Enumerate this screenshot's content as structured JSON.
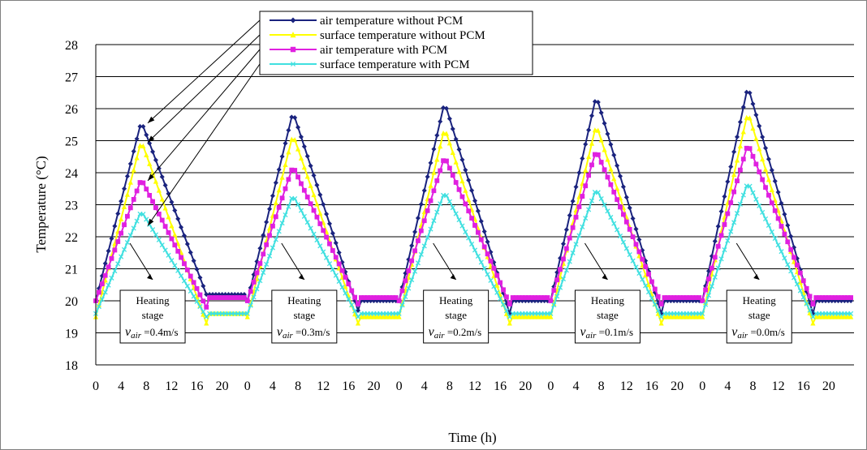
{
  "chart_data": {
    "type": "line",
    "title": "",
    "xlabel": "Time (h)",
    "ylabel": "Temperature (°C)",
    "ylim": [
      18,
      28
    ],
    "yticks": [
      "18",
      "19",
      "20",
      "21",
      "22",
      "23",
      "24",
      "25",
      "26",
      "27",
      "28"
    ],
    "xticks": [
      "0",
      "4",
      "8",
      "12",
      "16",
      "20",
      "0",
      "4",
      "8",
      "12",
      "16",
      "20",
      "0",
      "4",
      "8",
      "12",
      "16",
      "20",
      "0",
      "4",
      "8",
      "12",
      "16",
      "20",
      "0",
      "4",
      "8",
      "12",
      "16",
      "20"
    ],
    "grid": "horizontal",
    "legend_position": "top-center",
    "segments": [
      {
        "note_line1": "Heating",
        "note_line2": "stage",
        "note_line3": "v",
        "note_sub": "air",
        "note_value": "=0.4m/s"
      },
      {
        "note_line1": "Heating",
        "note_line2": "stage",
        "note_line3": "v",
        "note_sub": "air",
        "note_value": "=0.3m/s"
      },
      {
        "note_line1": "Heating",
        "note_line2": "stage",
        "note_line3": "v",
        "note_sub": "air",
        "note_value": "=0.2m/s"
      },
      {
        "note_line1": "Heating",
        "note_line2": "stage",
        "note_line3": "v",
        "note_sub": "air",
        "note_value": "=0.1m/s"
      },
      {
        "note_line1": "Heating",
        "note_line2": "stage",
        "note_line3": "v",
        "note_sub": "air",
        "note_value": "=0.0m/s"
      }
    ],
    "series": [
      {
        "name": "air temperature without PCM",
        "color": "#1a237e",
        "marker": "diamond",
        "cycles": [
          {
            "start": 20.0,
            "peak": 25.6,
            "end": 20.2,
            "plateau": 20.2
          },
          {
            "start": 20.0,
            "peak": 25.9,
            "end": 19.7,
            "plateau": 20.0
          },
          {
            "start": 20.0,
            "peak": 26.2,
            "end": 19.6,
            "plateau": 20.0
          },
          {
            "start": 20.0,
            "peak": 26.4,
            "end": 19.6,
            "plateau": 20.0
          },
          {
            "start": 20.0,
            "peak": 26.7,
            "end": 19.6,
            "plateau": 20.0
          }
        ]
      },
      {
        "name": "surface temperature without PCM",
        "color": "#ffff00",
        "marker": "triangle",
        "cycles": [
          {
            "start": 19.5,
            "peak": 25.0,
            "end": 19.3,
            "plateau": 19.6
          },
          {
            "start": 19.5,
            "peak": 25.2,
            "end": 19.3,
            "plateau": 19.5
          },
          {
            "start": 19.5,
            "peak": 25.4,
            "end": 19.3,
            "plateau": 19.5
          },
          {
            "start": 19.5,
            "peak": 25.5,
            "end": 19.3,
            "plateau": 19.5
          },
          {
            "start": 19.5,
            "peak": 25.9,
            "end": 19.3,
            "plateau": 19.5
          }
        ]
      },
      {
        "name": "air temperature with PCM",
        "color": "#e020e0",
        "marker": "square",
        "cycles": [
          {
            "start": 20.0,
            "peak": 23.8,
            "end": 19.8,
            "plateau": 20.1
          },
          {
            "start": 20.0,
            "peak": 24.2,
            "end": 19.9,
            "plateau": 20.1
          },
          {
            "start": 20.0,
            "peak": 24.5,
            "end": 19.9,
            "plateau": 20.1
          },
          {
            "start": 20.0,
            "peak": 24.7,
            "end": 19.9,
            "plateau": 20.1
          },
          {
            "start": 20.0,
            "peak": 24.9,
            "end": 19.9,
            "plateau": 20.1
          }
        ]
      },
      {
        "name": "surface temperature with PCM",
        "color": "#40e0e0",
        "marker": "x",
        "cycles": [
          {
            "start": 19.6,
            "peak": 22.8,
            "end": 19.5,
            "plateau": 19.6
          },
          {
            "start": 19.6,
            "peak": 23.3,
            "end": 19.5,
            "plateau": 19.6
          },
          {
            "start": 19.6,
            "peak": 23.4,
            "end": 19.5,
            "plateau": 19.6
          },
          {
            "start": 19.6,
            "peak": 23.5,
            "end": 19.5,
            "plateau": 19.6
          },
          {
            "start": 19.6,
            "peak": 23.7,
            "end": 19.5,
            "plateau": 19.6
          }
        ]
      }
    ]
  }
}
